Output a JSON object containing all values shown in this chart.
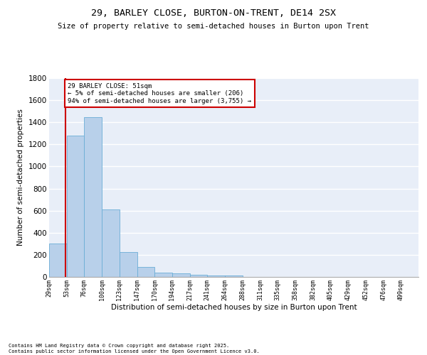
{
  "title": "29, BARLEY CLOSE, BURTON-ON-TRENT, DE14 2SX",
  "subtitle": "Size of property relative to semi-detached houses in Burton upon Trent",
  "xlabel": "Distribution of semi-detached houses by size in Burton upon Trent",
  "ylabel": "Number of semi-detached properties",
  "bin_labels": [
    "29sqm",
    "53sqm",
    "76sqm",
    "100sqm",
    "123sqm",
    "147sqm",
    "170sqm",
    "194sqm",
    "217sqm",
    "241sqm",
    "264sqm",
    "288sqm",
    "311sqm",
    "335sqm",
    "358sqm",
    "382sqm",
    "405sqm",
    "429sqm",
    "452sqm",
    "476sqm",
    "499sqm"
  ],
  "bar_values": [
    305,
    1280,
    1445,
    608,
    222,
    88,
    38,
    30,
    22,
    14,
    12,
    0,
    0,
    0,
    0,
    0,
    0,
    0,
    0,
    0,
    0
  ],
  "bar_color": "#b8d0ea",
  "bar_edge_color": "#6baed6",
  "subject_line_color": "#cc0000",
  "annotation_text": "29 BARLEY CLOSE: 51sqm\n← 5% of semi-detached houses are smaller (206)\n94% of semi-detached houses are larger (3,755) →",
  "annotation_box_color": "#cc0000",
  "ylim": [
    0,
    1800
  ],
  "yticks": [
    0,
    200,
    400,
    600,
    800,
    1000,
    1200,
    1400,
    1600,
    1800
  ],
  "background_color": "#e8eef8",
  "grid_color": "#ffffff",
  "footer_line1": "Contains HM Land Registry data © Crown copyright and database right 2025.",
  "footer_line2": "Contains public sector information licensed under the Open Government Licence v3.0."
}
